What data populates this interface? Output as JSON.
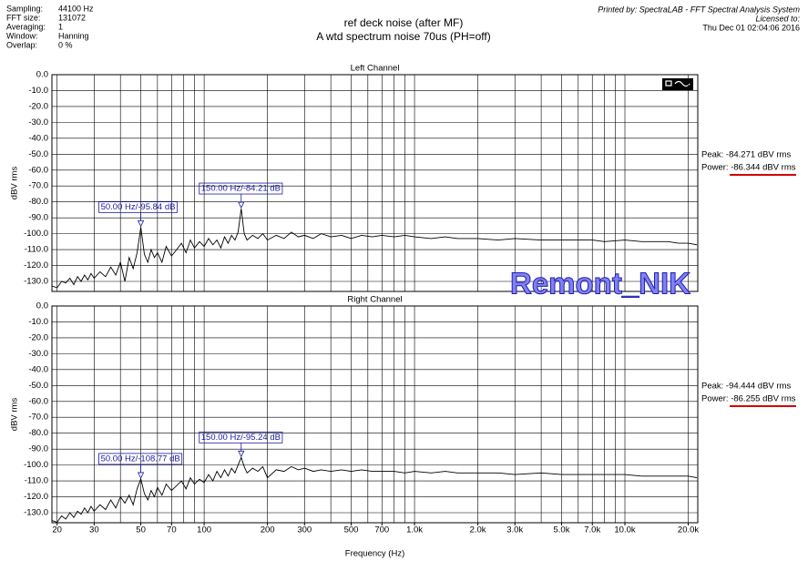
{
  "header": {
    "settings": [
      [
        "Sampling:",
        "44100 Hz"
      ],
      [
        "FFT size:",
        "131072"
      ],
      [
        "Averaging:",
        "1"
      ],
      [
        "Window:",
        "Hanning"
      ],
      [
        "Overlap:",
        "0 %"
      ]
    ],
    "title": "ref deck noise (after MF)",
    "subtitle": "A wtd spectrum noise 70us  (PH=off)",
    "printed_by": "Printed by: SpectraLAB - FFT Spectral Analysis System",
    "licensed_to": "Licensed to:",
    "date": "Thu Dec 01 02:04:06 2016",
    "watermark": "Remont_NIK"
  },
  "chart_data": [
    {
      "type": "line",
      "title": "Left Channel",
      "ylabel": "dBV rms",
      "xscale": "log",
      "grid": true,
      "color": "#000000",
      "xlim": [
        18.9,
        22200
      ],
      "ylim": [
        -136.3,
        0
      ],
      "yticks": [
        {
          "value": 0,
          "label": "0.0"
        },
        {
          "value": -10,
          "label": "-10.0"
        },
        {
          "value": -20,
          "label": "-20.0"
        },
        {
          "value": -30,
          "label": "-30.0"
        },
        {
          "value": -40,
          "label": "-40.0"
        },
        {
          "value": -50,
          "label": "-50.0"
        },
        {
          "value": -60,
          "label": "-60.0"
        },
        {
          "value": -70,
          "label": "-70.0"
        },
        {
          "value": -80,
          "label": "-80.0"
        },
        {
          "value": -90,
          "label": "-90.0"
        },
        {
          "value": -100,
          "label": "-100.0"
        },
        {
          "value": -110,
          "label": "-110.0"
        },
        {
          "value": -120,
          "label": "-120.0"
        },
        {
          "value": -130,
          "label": "-130.0"
        }
      ],
      "xgrid": [
        20,
        30,
        40,
        50,
        60,
        70,
        80,
        90,
        100,
        200,
        300,
        400,
        500,
        600,
        700,
        800,
        900,
        1000,
        2000,
        3000,
        4000,
        5000,
        6000,
        7000,
        8000,
        9000,
        10000,
        20000
      ],
      "x": [
        19,
        20,
        21,
        22,
        23,
        24,
        25,
        26,
        27,
        28,
        29,
        30,
        32,
        34,
        36,
        38,
        40,
        42,
        44,
        46,
        48,
        50,
        52,
        54,
        56,
        58,
        60,
        63,
        66,
        70,
        74,
        78,
        82,
        86,
        90,
        95,
        100,
        105,
        110,
        115,
        120,
        125,
        130,
        135,
        140,
        145,
        150,
        155,
        160,
        170,
        180,
        190,
        200,
        220,
        240,
        260,
        280,
        300,
        330,
        360,
        400,
        450,
        500,
        560,
        630,
        700,
        800,
        900,
        1000,
        1200,
        1400,
        1600,
        2000,
        2500,
        3000,
        4000,
        5000,
        6000,
        7000,
        8000,
        10000,
        12000,
        14000,
        16000,
        18000,
        20000,
        22000
      ],
      "values": [
        -133,
        -134,
        -130,
        -131,
        -128,
        -132,
        -127,
        -130,
        -126,
        -129,
        -125,
        -128,
        -124,
        -127,
        -121,
        -126,
        -118,
        -130,
        -115,
        -122,
        -112,
        -95.84,
        -113,
        -118,
        -110,
        -115,
        -112,
        -118,
        -108,
        -114,
        -110,
        -106,
        -112,
        -104,
        -109,
        -105,
        -108,
        -103,
        -107,
        -104,
        -109,
        -102,
        -106,
        -101,
        -104,
        -99,
        -84.21,
        -100,
        -104,
        -101,
        -103,
        -100,
        -104,
        -101,
        -103,
        -99,
        -102,
        -101,
        -103,
        -100,
        -102,
        -101,
        -103,
        -101,
        -102,
        -101,
        -102,
        -101,
        -102,
        -103,
        -102,
        -103,
        -103,
        -104,
        -103,
        -104,
        -104,
        -104,
        -104,
        -105,
        -104,
        -105,
        -105,
        -105,
        -106,
        -106,
        -107
      ],
      "annotations": [
        {
          "x": 50,
          "y": -95.84,
          "label": "50.00 Hz/-95.84 dB"
        },
        {
          "x": 150,
          "y": -84.21,
          "label": "150.00 Hz/-84.21 dB"
        }
      ],
      "peak": "Peak: -84.271 dBV rms",
      "power": "Power: -86.344 dBV rms"
    },
    {
      "type": "line",
      "title": "Right Channel",
      "ylabel": "dBV rms",
      "xlabel": "Frequency (Hz)",
      "xscale": "log",
      "grid": true,
      "color": "#000000",
      "xlim": [
        18.9,
        22200
      ],
      "ylim": [
        -136.3,
        0
      ],
      "yticks": [
        {
          "value": 0,
          "label": "0.0"
        },
        {
          "value": -10,
          "label": "-10.0"
        },
        {
          "value": -20,
          "label": "-20.0"
        },
        {
          "value": -30,
          "label": "-30.0"
        },
        {
          "value": -40,
          "label": "-40.0"
        },
        {
          "value": -50,
          "label": "-50.0"
        },
        {
          "value": -60,
          "label": "-60.0"
        },
        {
          "value": -70,
          "label": "-70.0"
        },
        {
          "value": -80,
          "label": "-80.0"
        },
        {
          "value": -90,
          "label": "-90.0"
        },
        {
          "value": -100,
          "label": "-100.0"
        },
        {
          "value": -110,
          "label": "-110.0"
        },
        {
          "value": -120,
          "label": "-120.0"
        },
        {
          "value": -130,
          "label": "-130.0"
        }
      ],
      "xticks": [
        20,
        30,
        50,
        70,
        100,
        200,
        300,
        500,
        700,
        {
          "value": 1000,
          "label": "1.0k"
        },
        {
          "value": 2000,
          "label": "2.0k"
        },
        {
          "value": 3000,
          "label": "3.0k"
        },
        {
          "value": 5000,
          "label": "5.0k"
        },
        {
          "value": 7000,
          "label": "7.0k"
        },
        {
          "value": 10000,
          "label": "10.0k"
        },
        {
          "value": 20000,
          "label": "20.0k"
        }
      ],
      "xgrid": [
        20,
        30,
        40,
        50,
        60,
        70,
        80,
        90,
        100,
        200,
        300,
        400,
        500,
        600,
        700,
        800,
        900,
        1000,
        2000,
        3000,
        4000,
        5000,
        6000,
        7000,
        8000,
        9000,
        10000,
        20000
      ],
      "x": [
        19,
        20,
        21,
        22,
        23,
        24,
        25,
        26,
        27,
        28,
        29,
        30,
        32,
        34,
        36,
        38,
        40,
        42,
        44,
        46,
        48,
        50,
        52,
        54,
        56,
        58,
        60,
        63,
        66,
        70,
        74,
        78,
        82,
        86,
        90,
        95,
        100,
        105,
        110,
        115,
        120,
        125,
        130,
        135,
        140,
        145,
        150,
        155,
        160,
        170,
        180,
        190,
        200,
        220,
        240,
        260,
        280,
        300,
        330,
        360,
        400,
        450,
        500,
        560,
        630,
        700,
        800,
        900,
        1000,
        1200,
        1400,
        1600,
        2000,
        2500,
        3000,
        4000,
        5000,
        6000,
        7000,
        8000,
        10000,
        12000,
        14000,
        16000,
        18000,
        20000,
        22000
      ],
      "values": [
        -135,
        -136,
        -132,
        -134,
        -130,
        -133,
        -129,
        -131,
        -127,
        -130,
        -126,
        -129,
        -125,
        -128,
        -122,
        -127,
        -120,
        -124,
        -119,
        -125,
        -115,
        -108.77,
        -118,
        -122,
        -116,
        -120,
        -114,
        -119,
        -112,
        -116,
        -113,
        -110,
        -115,
        -108,
        -112,
        -109,
        -111,
        -106,
        -110,
        -104,
        -108,
        -103,
        -107,
        -102,
        -105,
        -100,
        -95.24,
        -101,
        -105,
        -102,
        -104,
        -101,
        -108,
        -103,
        -104,
        -101,
        -103,
        -102,
        -104,
        -103,
        -104,
        -103,
        -104,
        -103,
        -104,
        -104,
        -104,
        -105,
        -104,
        -105,
        -104,
        -105,
        -105,
        -105,
        -106,
        -105,
        -106,
        -106,
        -106,
        -106,
        -106,
        -107,
        -107,
        -107,
        -107,
        -107,
        -108
      ],
      "annotations": [
        {
          "x": 50,
          "y": -108.77,
          "label": "50.00 Hz/-108.77 dB"
        },
        {
          "x": 150,
          "y": -95.24,
          "label": "150.00 Hz/-95.24 dB"
        }
      ],
      "peak": "Peak: -94.444 dBV rms",
      "power": "Power: -86.255 dBV rms"
    }
  ]
}
